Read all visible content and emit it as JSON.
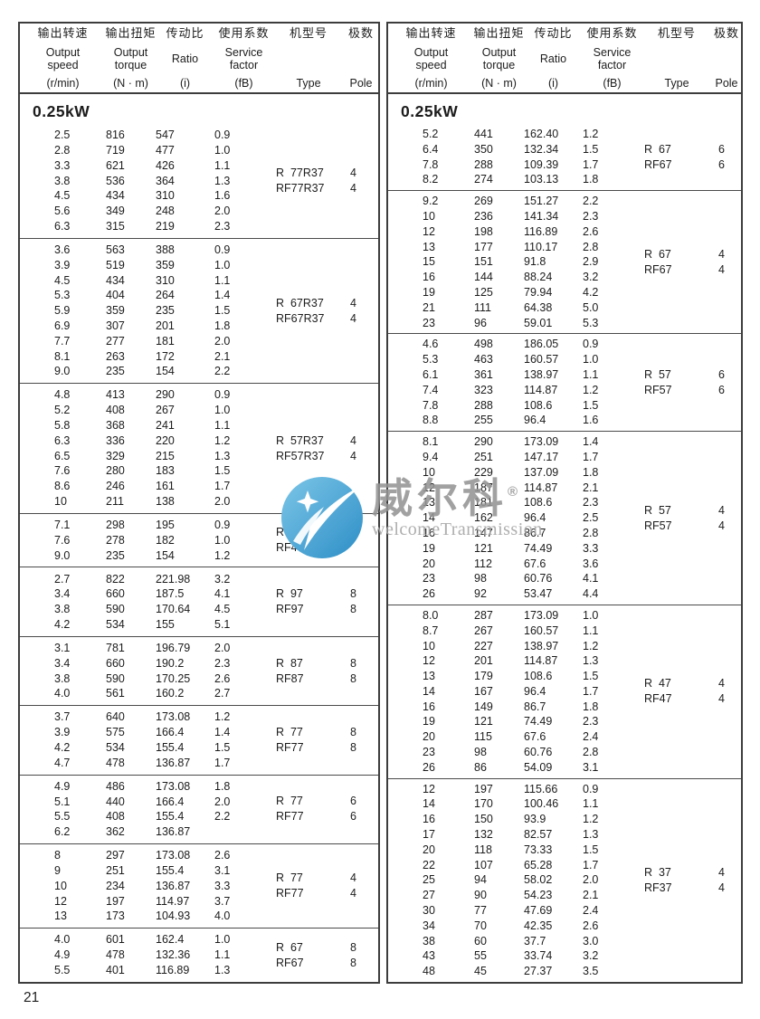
{
  "page": {
    "number": "21"
  },
  "header": {
    "columns": [
      {
        "zh": "输出转速",
        "en": "Output speed",
        "unit": "(r/min)"
      },
      {
        "zh": "输出扭矩",
        "en": "Output torque",
        "unit": "(N · m)"
      },
      {
        "zh": "传动比",
        "en": "Ratio",
        "unit": "(i)"
      },
      {
        "zh": "使用系数",
        "en": "Service factor",
        "unit": "(fB)"
      },
      {
        "zh": "机型号",
        "en": "Type",
        "unit": ""
      },
      {
        "zh": "极数",
        "en": "Pole",
        "unit": ""
      }
    ]
  },
  "tables": [
    {
      "section": "0.25kW",
      "groups": [
        {
          "rows": [
            [
              "2.5",
              "816",
              "547",
              "0.9"
            ],
            [
              "2.8",
              "719",
              "477",
              "1.0"
            ],
            [
              "3.3",
              "621",
              "426",
              "1.1"
            ],
            [
              "3.8",
              "536",
              "364",
              "1.3"
            ],
            [
              "4.5",
              "434",
              "310",
              "1.6"
            ],
            [
              "5.6",
              "349",
              "248",
              "2.0"
            ],
            [
              "6.3",
              "315",
              "219",
              "2.3"
            ]
          ],
          "types": [
            "R  77R37",
            "RF77R37"
          ],
          "poles": [
            "4",
            "4"
          ]
        },
        {
          "rows": [
            [
              "3.6",
              "563",
              "388",
              "0.9"
            ],
            [
              "3.9",
              "519",
              "359",
              "1.0"
            ],
            [
              "4.5",
              "434",
              "310",
              "1.1"
            ],
            [
              "5.3",
              "404",
              "264",
              "1.4"
            ],
            [
              "5.9",
              "359",
              "235",
              "1.5"
            ],
            [
              "6.9",
              "307",
              "201",
              "1.8"
            ],
            [
              "7.7",
              "277",
              "181",
              "2.0"
            ],
            [
              "8.1",
              "263",
              "172",
              "2.1"
            ],
            [
              "9.0",
              "235",
              "154",
              "2.2"
            ]
          ],
          "types": [
            "R  67R37",
            "RF67R37"
          ],
          "poles": [
            "4",
            "4"
          ]
        },
        {
          "rows": [
            [
              "4.8",
              "413",
              "290",
              "0.9"
            ],
            [
              "5.2",
              "408",
              "267",
              "1.0"
            ],
            [
              "5.8",
              "368",
              "241",
              "1.1"
            ],
            [
              "6.3",
              "336",
              "220",
              "1.2"
            ],
            [
              "6.5",
              "329",
              "215",
              "1.3"
            ],
            [
              "7.6",
              "280",
              "183",
              "1.5"
            ],
            [
              "8.6",
              "246",
              "161",
              "1.7"
            ],
            [
              "10",
              "211",
              "138",
              "2.0"
            ]
          ],
          "types": [
            "R  57R37",
            "RF57R37"
          ],
          "poles": [
            "4",
            "4"
          ]
        },
        {
          "rows": [
            [
              "7.1",
              "298",
              "195",
              "0.9"
            ],
            [
              "7.6",
              "278",
              "182",
              "1.0"
            ],
            [
              "9.0",
              "235",
              "154",
              "1.2"
            ]
          ],
          "types": [
            "R  47R37",
            "RF47R37"
          ],
          "poles": [
            "",
            ""
          ]
        },
        {
          "rows": [
            [
              "2.7",
              "822",
              "221.98",
              "3.2"
            ],
            [
              "3.4",
              "660",
              "187.5",
              "4.1"
            ],
            [
              "3.8",
              "590",
              "170.64",
              "4.5"
            ],
            [
              "4.2",
              "534",
              "155",
              "5.1"
            ]
          ],
          "types": [
            "R  97",
            "RF97"
          ],
          "poles": [
            "8",
            "8"
          ]
        },
        {
          "rows": [
            [
              "3.1",
              "781",
              "196.79",
              "2.0"
            ],
            [
              "3.4",
              "660",
              "190.2",
              "2.3"
            ],
            [
              "3.8",
              "590",
              "170.25",
              "2.6"
            ],
            [
              "4.0",
              "561",
              "160.2",
              "2.7"
            ]
          ],
          "types": [
            "R  87",
            "RF87"
          ],
          "poles": [
            "8",
            "8"
          ]
        },
        {
          "rows": [
            [
              "3.7",
              "640",
              "173.08",
              "1.2"
            ],
            [
              "3.9",
              "575",
              "166.4",
              "1.4"
            ],
            [
              "4.2",
              "534",
              "155.4",
              "1.5"
            ],
            [
              "4.7",
              "478",
              "136.87",
              "1.7"
            ]
          ],
          "types": [
            "R  77",
            "RF77"
          ],
          "poles": [
            "8",
            "8"
          ]
        },
        {
          "rows": [
            [
              "4.9",
              "486",
              "173.08",
              "1.8"
            ],
            [
              "5.1",
              "440",
              "166.4",
              "2.0"
            ],
            [
              "5.5",
              "408",
              "155.4",
              "2.2"
            ],
            [
              "6.2",
              "362",
              "136.87",
              ""
            ]
          ],
          "types": [
            "R  77",
            "RF77"
          ],
          "poles": [
            "6",
            "6"
          ]
        },
        {
          "rows": [
            [
              "8",
              "297",
              "173.08",
              "2.6"
            ],
            [
              "9",
              "251",
              "155.4",
              "3.1"
            ],
            [
              "10",
              "234",
              "136.87",
              "3.3"
            ],
            [
              "12",
              "197",
              "114.97",
              "3.7"
            ],
            [
              "13",
              "173",
              "104.93",
              "4.0"
            ]
          ],
          "types": [
            "R  77",
            "RF77"
          ],
          "poles": [
            "4",
            "4"
          ]
        },
        {
          "rows": [
            [
              "4.0",
              "601",
              "162.4",
              "1.0"
            ],
            [
              "4.9",
              "478",
              "132.36",
              "1.1"
            ],
            [
              "5.5",
              "401",
              "116.89",
              "1.3"
            ]
          ],
          "types": [
            "R  67",
            "RF67"
          ],
          "poles": [
            "8",
            "8"
          ]
        }
      ]
    },
    {
      "section": "0.25kW",
      "groups": [
        {
          "rows": [
            [
              "5.2",
              "441",
              "162.40",
              "1.2"
            ],
            [
              "6.4",
              "350",
              "132.34",
              "1.5"
            ],
            [
              "7.8",
              "288",
              "109.39",
              "1.7"
            ],
            [
              "8.2",
              "274",
              "103.13",
              "1.8"
            ]
          ],
          "types": [
            "R  67",
            "RF67"
          ],
          "poles": [
            "6",
            "6"
          ]
        },
        {
          "rows": [
            [
              "9.2",
              "269",
              "151.27",
              "2.2"
            ],
            [
              "10",
              "236",
              "141.34",
              "2.3"
            ],
            [
              "12",
              "198",
              "116.89",
              "2.6"
            ],
            [
              "13",
              "177",
              "110.17",
              "2.8"
            ],
            [
              "15",
              "151",
              "91.8",
              "2.9"
            ],
            [
              "16",
              "144",
              "88.24",
              "3.2"
            ],
            [
              "19",
              "125",
              "79.94",
              "4.2"
            ],
            [
              "21",
              "111",
              "64.38",
              "5.0"
            ],
            [
              "23",
              "96",
              "59.01",
              "5.3"
            ]
          ],
          "types": [
            "R  67",
            "RF67"
          ],
          "poles": [
            "4",
            "4"
          ]
        },
        {
          "rows": [
            [
              "4.6",
              "498",
              "186.05",
              "0.9"
            ],
            [
              "5.3",
              "463",
              "160.57",
              "1.0"
            ],
            [
              "6.1",
              "361",
              "138.97",
              "1.1"
            ],
            [
              "7.4",
              "323",
              "114.87",
              "1.2"
            ],
            [
              "7.8",
              "288",
              "108.6",
              "1.5"
            ],
            [
              "8.8",
              "255",
              "96.4",
              "1.6"
            ]
          ],
          "types": [
            "R  57",
            "RF57"
          ],
          "poles": [
            "6",
            "6"
          ]
        },
        {
          "rows": [
            [
              "8.1",
              "290",
              "173.09",
              "1.4"
            ],
            [
              "9.4",
              "251",
              "147.17",
              "1.7"
            ],
            [
              "10",
              "229",
              "137.09",
              "1.8"
            ],
            [
              "12",
              "187",
              "114.87",
              "2.1"
            ],
            [
              "13",
              "181",
              "108.6",
              "2.3"
            ],
            [
              "14",
              "162",
              "96.4",
              "2.5"
            ],
            [
              "16",
              "147",
              "86.7",
              "2.8"
            ],
            [
              "19",
              "121",
              "74.49",
              "3.3"
            ],
            [
              "20",
              "112",
              "67.6",
              "3.6"
            ],
            [
              "23",
              "98",
              "60.76",
              "4.1"
            ],
            [
              "26",
              "92",
              "53.47",
              "4.4"
            ]
          ],
          "types": [
            "R  57",
            "RF57"
          ],
          "poles": [
            "4",
            "4"
          ]
        },
        {
          "rows": [
            [
              "8.0",
              "287",
              "173.09",
              "1.0"
            ],
            [
              "8.7",
              "267",
              "160.57",
              "1.1"
            ],
            [
              "10",
              "227",
              "138.97",
              "1.2"
            ],
            [
              "12",
              "201",
              "114.87",
              "1.3"
            ],
            [
              "13",
              "179",
              "108.6",
              "1.5"
            ],
            [
              "14",
              "167",
              "96.4",
              "1.7"
            ],
            [
              "16",
              "149",
              "86.7",
              "1.8"
            ],
            [
              "19",
              "121",
              "74.49",
              "2.3"
            ],
            [
              "20",
              "115",
              "67.6",
              "2.4"
            ],
            [
              "23",
              "98",
              "60.76",
              "2.8"
            ],
            [
              "26",
              "86",
              "54.09",
              "3.1"
            ]
          ],
          "types": [
            "R  47",
            "RF47"
          ],
          "poles": [
            "4",
            "4"
          ]
        },
        {
          "rows": [
            [
              "12",
              "197",
              "115.66",
              "0.9"
            ],
            [
              "14",
              "170",
              "100.46",
              "1.1"
            ],
            [
              "16",
              "150",
              "93.9",
              "1.2"
            ],
            [
              "17",
              "132",
              "82.57",
              "1.3"
            ],
            [
              "20",
              "118",
              "73.33",
              "1.5"
            ],
            [
              "22",
              "107",
              "65.28",
              "1.7"
            ],
            [
              "25",
              "94",
              "58.02",
              "2.0"
            ],
            [
              "27",
              "90",
              "54.23",
              "2.1"
            ],
            [
              "30",
              "77",
              "47.69",
              "2.4"
            ],
            [
              "34",
              "70",
              "42.35",
              "2.6"
            ],
            [
              "38",
              "60",
              "37.7",
              "3.0"
            ],
            [
              "43",
              "55",
              "33.74",
              "3.2"
            ],
            [
              "48",
              "45",
              "27.37",
              "3.5"
            ]
          ],
          "types": [
            "R  37",
            "RF37"
          ],
          "poles": [
            "4",
            "4"
          ]
        }
      ]
    }
  ],
  "watermark": {
    "cn": "威尔科",
    "reg": "®",
    "en": "welcomeTransmission",
    "logo": "swoosh-circle-logo",
    "logo_color": "#3f9fd4"
  }
}
